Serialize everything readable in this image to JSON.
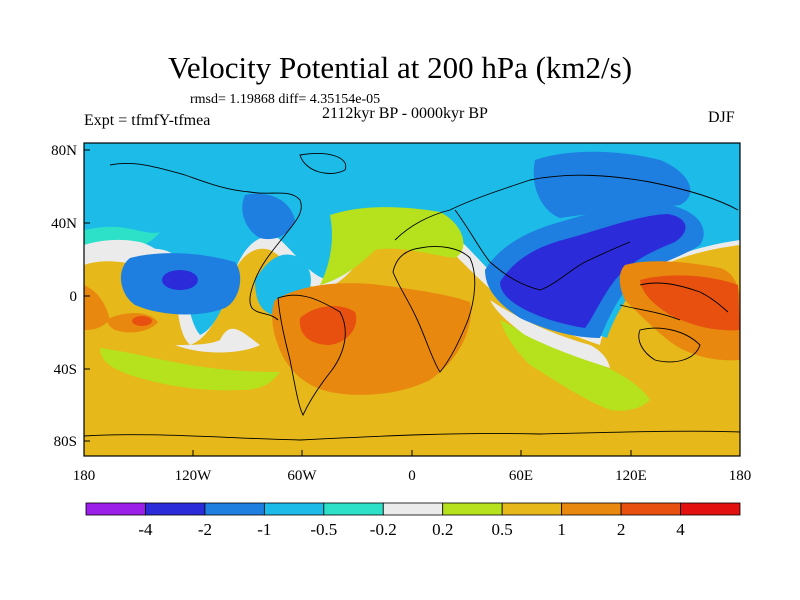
{
  "title": "Velocity Potential at 200 hPa (km2/s)",
  "stats": "rmsd= 1.19868 diff= 4.35154e-05",
  "experiment": "Expt = tfmfY-tfmea",
  "period": "2112kyr BP - 0000kyr BP",
  "season": "DJF",
  "axes": {
    "x_ticks": [
      "180",
      "120W",
      "60W",
      "0",
      "60E",
      "120E",
      "180"
    ],
    "y_ticks": [
      "80N",
      "40N",
      "0",
      "40S",
      "80S"
    ]
  },
  "colorbar": {
    "colors": [
      "#9b1fe8",
      "#2b2bd9",
      "#1e7fe0",
      "#1cbbe8",
      "#2de0c8",
      "#ebebeb",
      "#b5e21c",
      "#e6b81a",
      "#e8880f",
      "#e8500f",
      "#e31010"
    ],
    "labels": [
      "-4",
      "-2",
      "-1",
      "-0.5",
      "-0.2",
      "0.2",
      "0.5",
      "1",
      "2",
      "4"
    ]
  },
  "colors": {
    "strong_negative": "#2b2bd9",
    "negative": "#1e7fe0",
    "weak_negative": "#1cbbe8",
    "near_zero": "#ebebeb",
    "weak_positive": "#b5e21c",
    "positive": "#e6b81a",
    "strong_positive": "#e8880f",
    "max_positive": "#e8500f"
  }
}
